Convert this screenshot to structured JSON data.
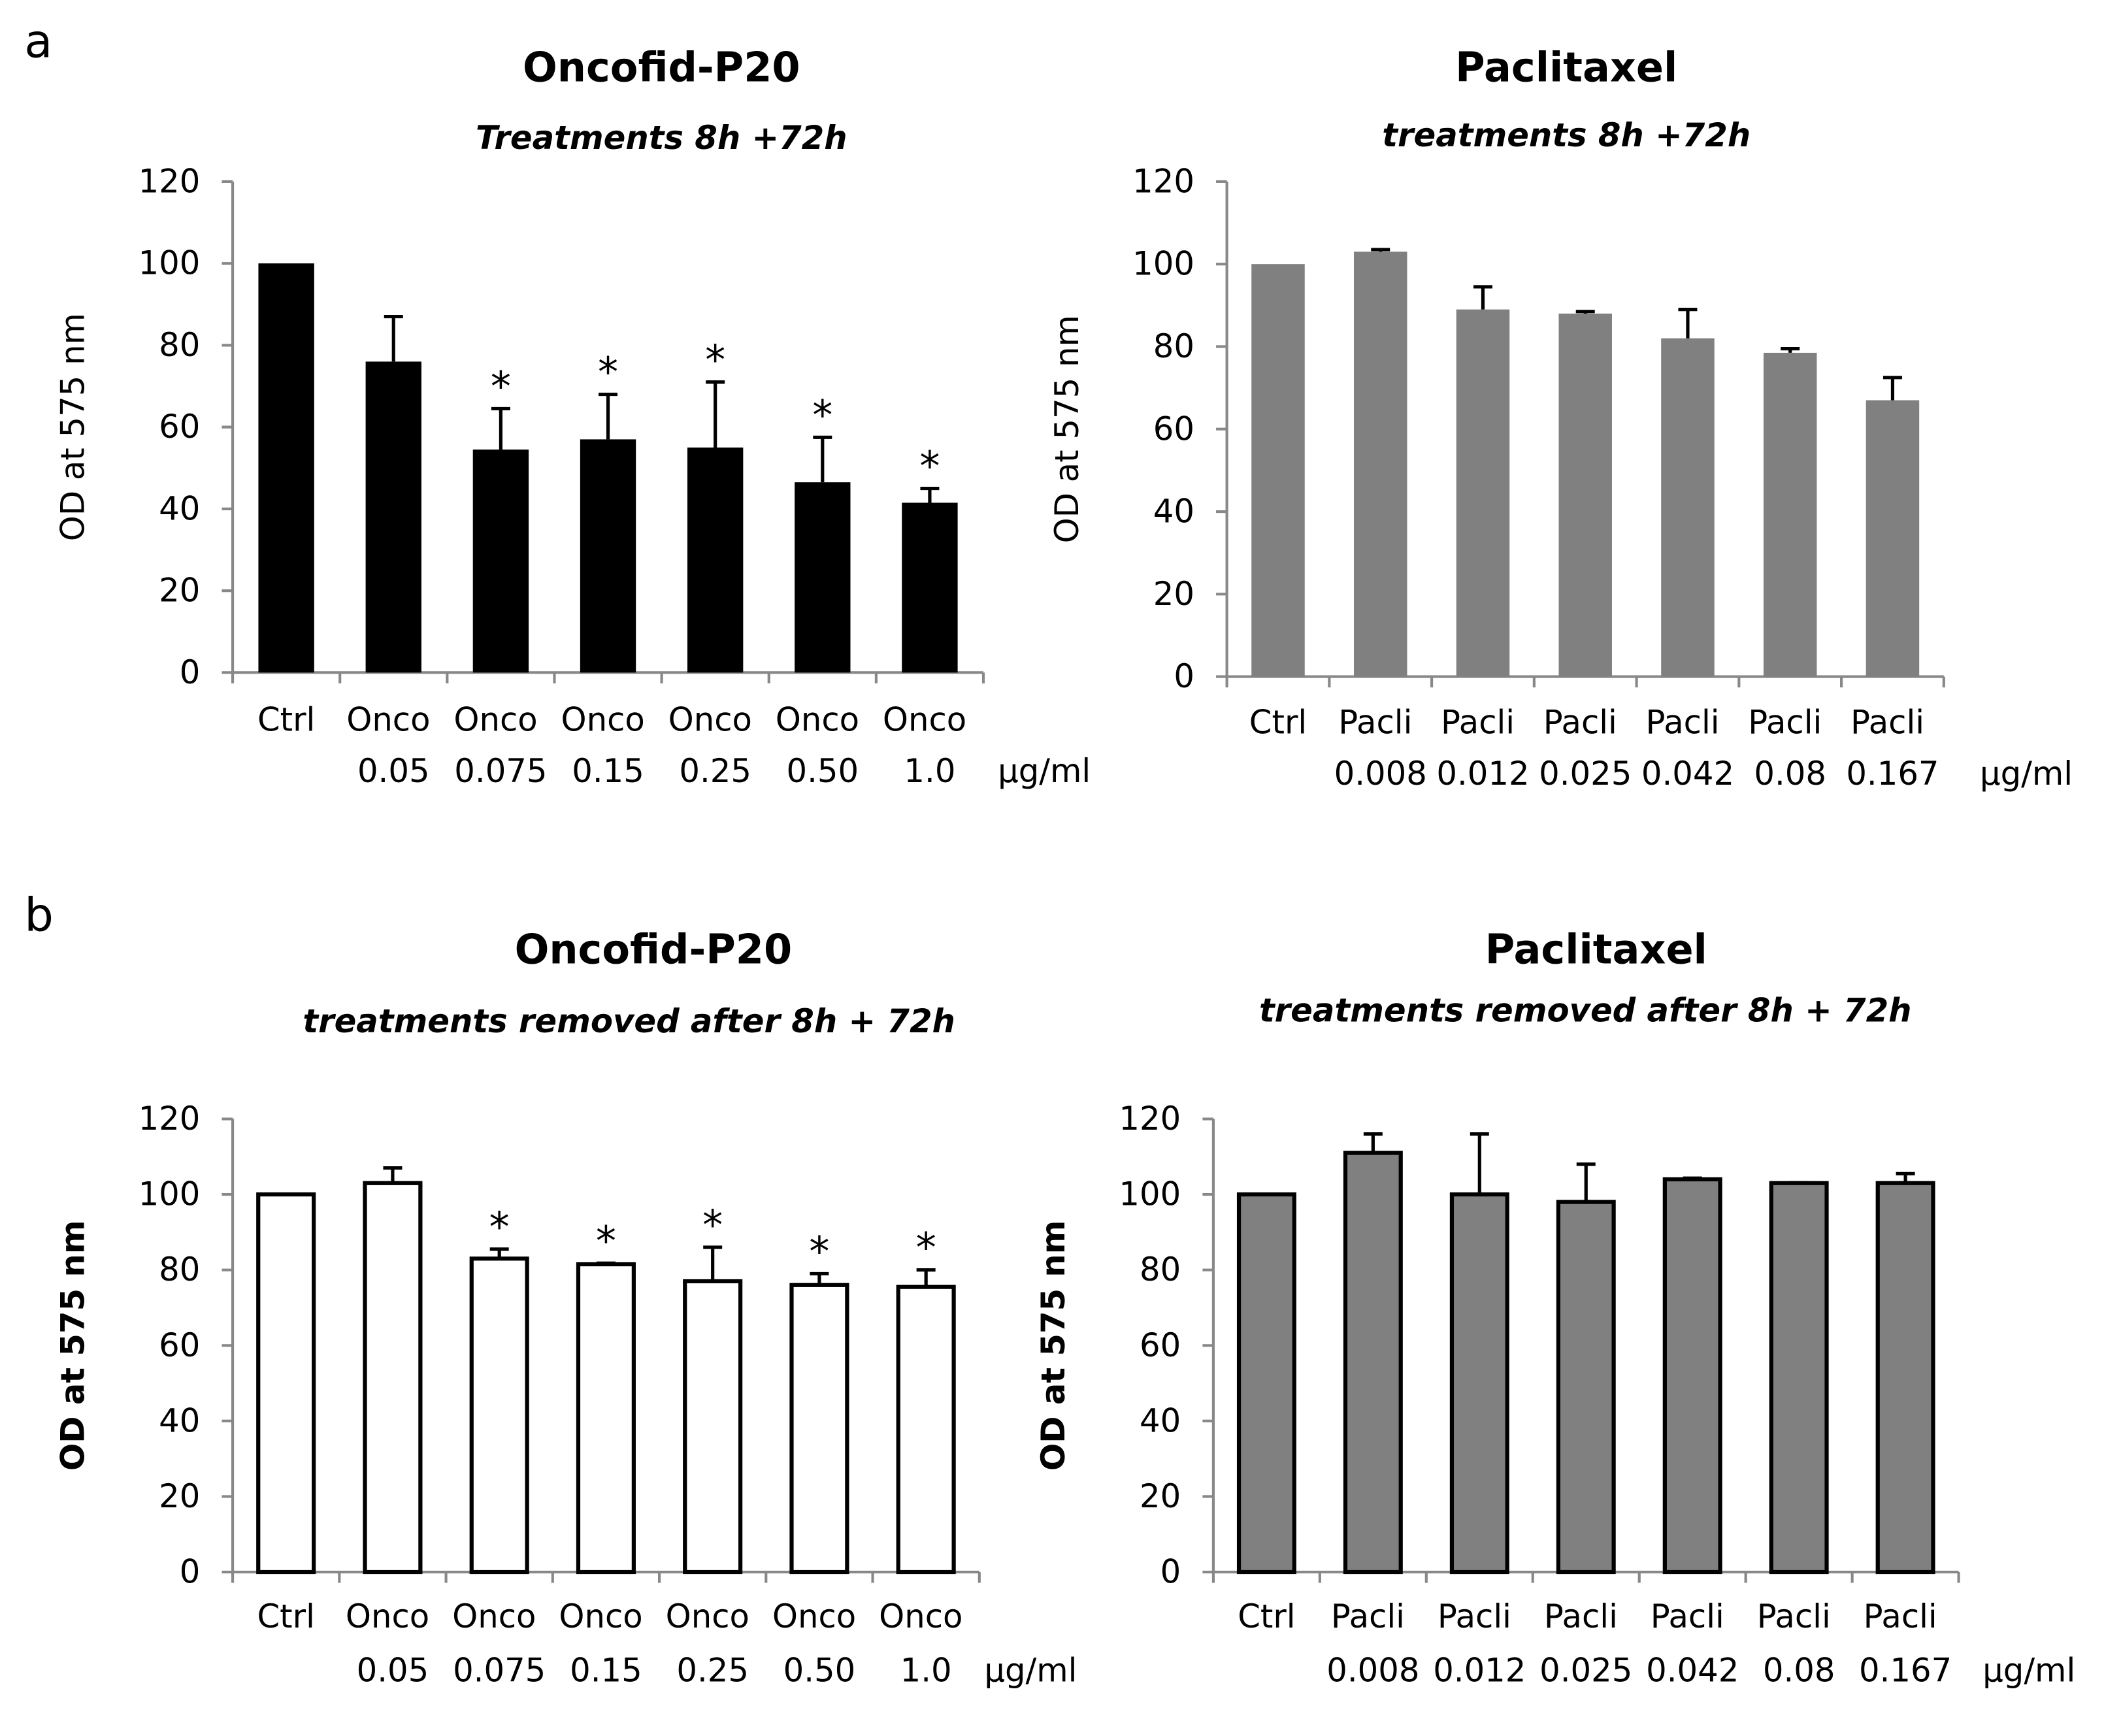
{
  "panels": [
    "a",
    "b"
  ],
  "chart_data": [
    {
      "type": "bar",
      "title": "Oncofid-P20",
      "subtitle": "Treatments 8h +72h",
      "ylabel": "OD at 575 nm",
      "unit_label": "µg/ml",
      "categories": [
        "Ctrl",
        "Onco 0.05",
        "Onco 0.075",
        "Onco 0.15",
        "Onco 0.25",
        "Onco 0.50",
        "Onco 1.0"
      ],
      "values": [
        100,
        76,
        54.5,
        57,
        55,
        46.5,
        41.5
      ],
      "errors": [
        null,
        11,
        10,
        11,
        16,
        11,
        3.5
      ],
      "significance": [
        null,
        null,
        "*",
        "*",
        "*",
        "*",
        "*"
      ],
      "color": "#000000",
      "edgecolor": "#000000",
      "ylim": [
        0,
        120
      ],
      "yticks": [
        0,
        20,
        40,
        60,
        80,
        100,
        120
      ]
    },
    {
      "type": "bar",
      "title": "Paclitaxel",
      "subtitle": "treatments 8h +72h",
      "ylabel": "OD at 575 nm",
      "unit_label": "µg/ml",
      "categories": [
        "Ctrl",
        "Pacli 0.008",
        "Pacli 0.012",
        "Pacli 0.025",
        "Pacli 0.042",
        "Pacli 0.08",
        "Pacli 0.167"
      ],
      "values": [
        100,
        103,
        89,
        88,
        82,
        78.5,
        67
      ],
      "errors": [
        null,
        0.5,
        5.5,
        0.5,
        7,
        1,
        5.5
      ],
      "color": "#808080",
      "edgecolor": "#808080",
      "ylim": [
        0,
        120
      ],
      "yticks": [
        0,
        20,
        40,
        60,
        80,
        100,
        120
      ]
    },
    {
      "type": "bar",
      "title": "Oncofid-P20",
      "subtitle": "treatments removed after 8h + 72h",
      "ylabel": "OD at 575 nm",
      "unit_label": "µg/ml",
      "categories": [
        "Ctrl",
        "Onco 0.05",
        "Onco 0.075",
        "Onco 0.15",
        "Onco 0.25",
        "Onco 0.50",
        "Onco 1.0"
      ],
      "values": [
        100,
        103,
        83,
        81.5,
        77,
        76,
        75.5
      ],
      "errors": [
        null,
        4,
        2.5,
        0.3,
        9,
        3,
        4.5
      ],
      "significance": [
        null,
        null,
        "*",
        "*",
        "*",
        "*",
        "*"
      ],
      "color": "#ffffff",
      "edgecolor": "#000000",
      "ylim": [
        0,
        120
      ],
      "yticks": [
        0,
        20,
        40,
        60,
        80,
        100,
        120
      ]
    },
    {
      "type": "bar",
      "title": "Paclitaxel",
      "subtitle": "treatments removed after 8h + 72h",
      "ylabel": "OD at 575 nm",
      "unit_label": "µg/ml",
      "categories": [
        "Ctrl",
        "Pacli 0.008",
        "Pacli 0.012",
        "Pacli 0.025",
        "Pacli 0.042",
        "Pacli 0.08",
        "Pacli 0.167"
      ],
      "values": [
        100,
        111,
        100,
        98,
        104,
        103,
        103
      ],
      "errors": [
        null,
        5,
        16,
        10,
        0.3,
        0.1,
        2.5
      ],
      "color": "#808080",
      "edgecolor": "#000000",
      "ylim": [
        0,
        120
      ],
      "yticks": [
        0,
        20,
        40,
        60,
        80,
        100,
        120
      ]
    }
  ]
}
